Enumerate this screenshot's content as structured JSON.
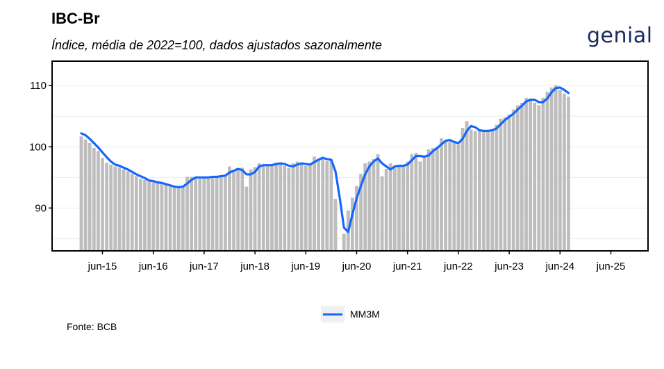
{
  "header": {
    "title": "IBC-Br",
    "subtitle": "Índice, média de 2022=100, dados ajustados sazonalmente",
    "logo_text": "genial"
  },
  "legend": {
    "label": "MM3M",
    "color": "#1565ff"
  },
  "footer": {
    "source": "Fonte: BCB"
  },
  "chart_data": {
    "type": "bar",
    "x_start": "2015-01",
    "categories_note": "monthly, jan-15 to aug-25",
    "xtick_labels": [
      "jun-15",
      "jun-16",
      "jun-17",
      "jun-18",
      "jun-19",
      "jun-20",
      "jun-21",
      "jun-22",
      "jun-23",
      "jun-24",
      "jun-25"
    ],
    "ytick_labels": [
      "90",
      "100",
      "110"
    ],
    "ylim": [
      83,
      114
    ],
    "bar_color": "#bdbdbd",
    "line_color": "#1565ff",
    "series": [
      {
        "name": "IBC-Br",
        "kind": "bar",
        "values": [
          101.7,
          101.2,
          100.6,
          99.8,
          99.3,
          98.2,
          97.4,
          97.1,
          96.8,
          96.6,
          96.3,
          96.0,
          95.6,
          95.2,
          94.8,
          94.6,
          94.3,
          94.2,
          94.1,
          94.0,
          93.8,
          93.6,
          93.4,
          93.3,
          93.5,
          95.1,
          95.1,
          95.0,
          94.8,
          95.1,
          95.2,
          95.0,
          95.2,
          95.4,
          95.3,
          96.8,
          96.0,
          96.3,
          96.6,
          93.5,
          96.3,
          96.7,
          97.3,
          96.9,
          97.0,
          97.2,
          97.4,
          97.3,
          96.9,
          96.5,
          97.3,
          97.6,
          97.1,
          96.9,
          97.3,
          98.4,
          98.0,
          98.2,
          97.7,
          97.9,
          91.5,
          83.0,
          85.8,
          89.6,
          91.7,
          93.6,
          95.6,
          97.3,
          97.6,
          98.0,
          98.8,
          95.2,
          96.4,
          97.3,
          96.7,
          96.8,
          97.0,
          97.6,
          98.8,
          99.0,
          97.6,
          98.5,
          99.6,
          99.8,
          100.0,
          101.4,
          101.0,
          100.8,
          100.6,
          100.4,
          103.1,
          104.2,
          102.8,
          102.6,
          102.6,
          102.6,
          102.5,
          102.9,
          103.6,
          104.6,
          104.8,
          105.3,
          106.1,
          106.8,
          107.2,
          108.0,
          107.9,
          107.2,
          106.8,
          108.0,
          109.0,
          109.7,
          110.1,
          109.3,
          108.7,
          108.2
        ]
      },
      {
        "name": "MM3M",
        "kind": "line",
        "values": [
          102.2,
          101.9,
          101.3,
          100.6,
          99.9,
          99.1,
          98.3,
          97.6,
          97.1,
          96.9,
          96.6,
          96.3,
          95.9,
          95.5,
          95.2,
          94.9,
          94.5,
          94.4,
          94.2,
          94.1,
          93.9,
          93.7,
          93.5,
          93.4,
          93.5,
          94.0,
          94.6,
          95.0,
          95.0,
          95.0,
          95.0,
          95.1,
          95.1,
          95.2,
          95.3,
          95.8,
          96.1,
          96.4,
          96.2,
          95.5,
          95.5,
          95.9,
          96.8,
          97.0,
          97.0,
          97.0,
          97.2,
          97.3,
          97.2,
          96.9,
          96.8,
          97.1,
          97.3,
          97.2,
          97.1,
          97.5,
          97.9,
          98.2,
          98.0,
          97.9,
          96.0,
          91.7,
          86.8,
          86.1,
          89.0,
          91.6,
          93.6,
          95.5,
          96.8,
          97.6,
          98.1,
          97.3,
          96.8,
          96.3,
          96.8,
          96.9,
          96.9,
          97.1,
          97.8,
          98.5,
          98.5,
          98.4,
          98.6,
          99.3,
          99.8,
          100.4,
          101.0,
          101.1,
          100.8,
          100.6,
          101.3,
          102.6,
          103.4,
          103.2,
          102.7,
          102.6,
          102.6,
          102.7,
          103.0,
          103.7,
          104.4,
          104.9,
          105.4,
          106.1,
          106.7,
          107.4,
          107.7,
          107.7,
          107.3,
          107.3,
          107.9,
          108.9,
          109.6,
          109.7,
          109.3,
          108.8
        ]
      }
    ],
    "grid": true,
    "legend_position": "bottom"
  }
}
